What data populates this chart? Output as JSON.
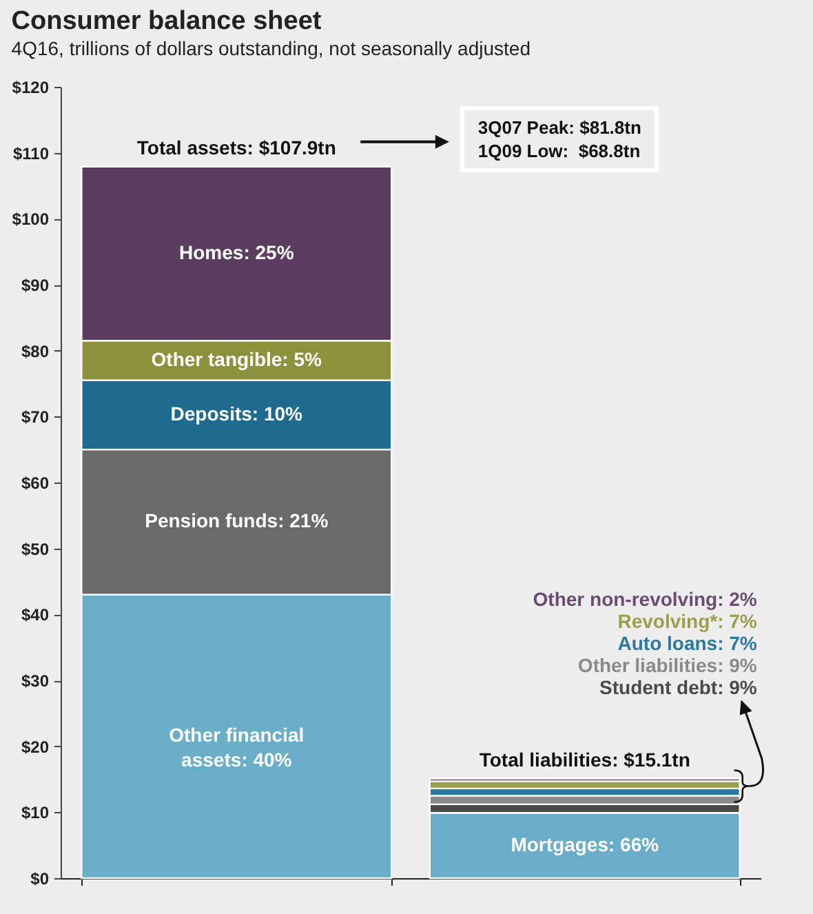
{
  "chart_data": {
    "type": "bar",
    "title": "Consumer balance sheet",
    "subtitle": "4Q16, trillions of dollars outstanding, not seasonally adjusted",
    "categories": [
      null,
      null
    ],
    "stacked": true,
    "tick_labels": "y",
    "grid": false,
    "legend": false,
    "ylim": [
      0,
      120
    ],
    "yticks": [
      {
        "value": 0,
        "label": "$0"
      },
      {
        "value": 10,
        "label": "$10"
      },
      {
        "value": 20,
        "label": "$20"
      },
      {
        "value": 30,
        "label": "$30"
      },
      {
        "value": 40,
        "label": "$40"
      },
      {
        "value": 50,
        "label": "$50"
      },
      {
        "value": 60,
        "label": "$60"
      },
      {
        "value": 70,
        "label": "$70"
      },
      {
        "value": 80,
        "label": "$80"
      },
      {
        "value": 90,
        "label": "$90"
      },
      {
        "value": 100,
        "label": "$100"
      },
      {
        "value": 110,
        "label": "$110"
      },
      {
        "value": 120,
        "label": "$120"
      }
    ],
    "series": [
      {
        "name": "Other financial assets: 40%",
        "color": "#6aadc9",
        "values": [
          43,
          null
        ]
      },
      {
        "name": "Pension funds: 21%",
        "color": "#6a6a6a",
        "values": [
          22,
          null
        ]
      },
      {
        "name": "Deposits: 10%",
        "color": "#1f6b8f",
        "values": [
          10.5,
          null
        ]
      },
      {
        "name": "Other tangible: 5%",
        "color": "#8c923b",
        "values": [
          6,
          null
        ]
      },
      {
        "name": "Homes: 25%",
        "color": "#5b3d5f",
        "values": [
          26.4,
          null
        ]
      },
      {
        "name": "Mortgages: 66%",
        "color": "#6aadc9",
        "values": [
          null,
          9.9
        ]
      },
      {
        "name": "Student debt: 9%",
        "color": "#4a4a4a",
        "values": [
          null,
          1.3
        ]
      },
      {
        "name": "Other liabilities: 9%",
        "color": "#8a8a8a",
        "values": [
          null,
          1.3
        ]
      },
      {
        "name": "Auto loans: 7%",
        "color": "#2b78a0",
        "values": [
          null,
          1.1
        ]
      },
      {
        "name": "Revolving*:  7%",
        "color": "#9aa04a",
        "values": [
          null,
          1.1
        ]
      },
      {
        "name": "Other non-revolving: 2%",
        "color": "#6a4c70",
        "values": [
          null,
          0.4
        ]
      }
    ],
    "annotations": [
      {
        "text": "Total assets: $107.9tn",
        "y": 107.9
      },
      "3Q07 Peak: $81.8tn",
      "1Q09 Low:  $68.8tn",
      {
        "text": "Total liabilities: $15.1tn",
        "y": 15.1
      }
    ]
  }
}
